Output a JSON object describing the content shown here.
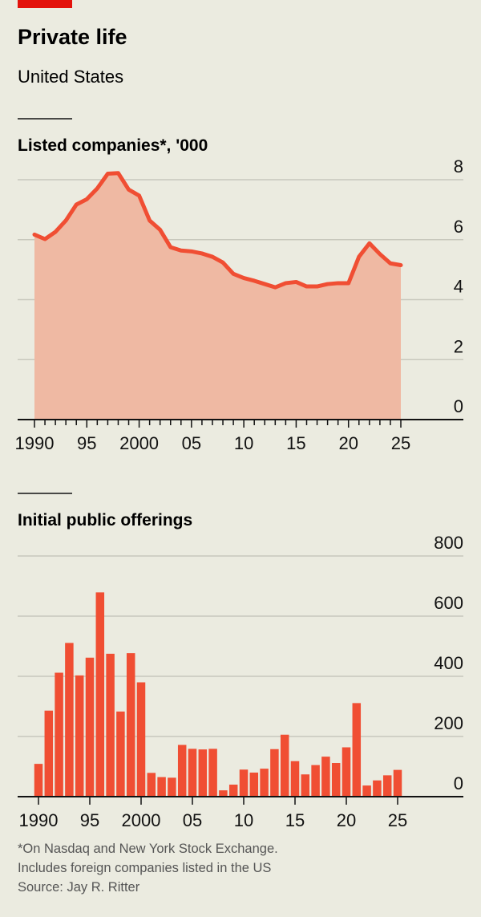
{
  "header": {
    "title": "Private life",
    "subtitle": "United States"
  },
  "colors": {
    "brand_bar": "#e3120b",
    "line": "#f04e33",
    "area_fill": "#efb9a3",
    "bar": "#f04e33",
    "background": "#ebebe0",
    "grid": "#c8c8bd"
  },
  "chart_data": [
    {
      "type": "area",
      "title": "Listed companies*, '000",
      "x": [
        1990,
        1991,
        1992,
        1993,
        1994,
        1995,
        1996,
        1997,
        1998,
        1999,
        2000,
        2001,
        2002,
        2003,
        2004,
        2005,
        2006,
        2007,
        2008,
        2009,
        2010,
        2011,
        2012,
        2013,
        2014,
        2015,
        2016,
        2017,
        2018,
        2019,
        2020,
        2021,
        2022,
        2023,
        2024,
        2025
      ],
      "values": [
        6.17,
        6.02,
        6.26,
        6.64,
        7.17,
        7.35,
        7.71,
        8.2,
        8.22,
        7.67,
        7.47,
        6.64,
        6.33,
        5.75,
        5.64,
        5.61,
        5.54,
        5.43,
        5.24,
        4.86,
        4.72,
        4.63,
        4.52,
        4.41,
        4.55,
        4.59,
        4.44,
        4.44,
        4.52,
        4.55,
        4.55,
        5.43,
        5.88,
        5.52,
        5.21,
        5.15
      ],
      "ylim": [
        0,
        8
      ],
      "yticks": [
        "0",
        "2",
        "4",
        "6",
        "8"
      ],
      "xticks": [
        "1990",
        "95",
        "2000",
        "05",
        "10",
        "15",
        "20",
        "25"
      ],
      "grid": true
    },
    {
      "type": "bar",
      "title": "Initial public offerings",
      "x": [
        1990,
        1991,
        1992,
        1993,
        1994,
        1995,
        1996,
        1997,
        1998,
        1999,
        2000,
        2001,
        2002,
        2003,
        2004,
        2005,
        2006,
        2007,
        2008,
        2009,
        2010,
        2011,
        2012,
        2013,
        2014,
        2015,
        2016,
        2017,
        2018,
        2019,
        2020,
        2021,
        2022,
        2023,
        2024,
        2025
      ],
      "values": [
        109,
        286,
        412,
        511,
        403,
        462,
        679,
        475,
        283,
        477,
        380,
        79,
        65,
        63,
        172,
        159,
        157,
        159,
        21,
        40,
        90,
        80,
        93,
        158,
        206,
        118,
        74,
        105,
        133,
        112,
        164,
        311,
        37,
        54,
        71,
        89
      ],
      "ylim": [
        0,
        800
      ],
      "yticks": [
        "0",
        "200",
        "400",
        "600",
        "800"
      ],
      "xticks": [
        "1990",
        "95",
        "2000",
        "05",
        "10",
        "15",
        "20",
        "25"
      ],
      "grid": true
    }
  ],
  "footnote": {
    "line1": "*On Nasdaq and New York Stock Exchange.",
    "line2": "Includes foreign companies listed in the US",
    "source": "Source: Jay R. Ritter"
  }
}
